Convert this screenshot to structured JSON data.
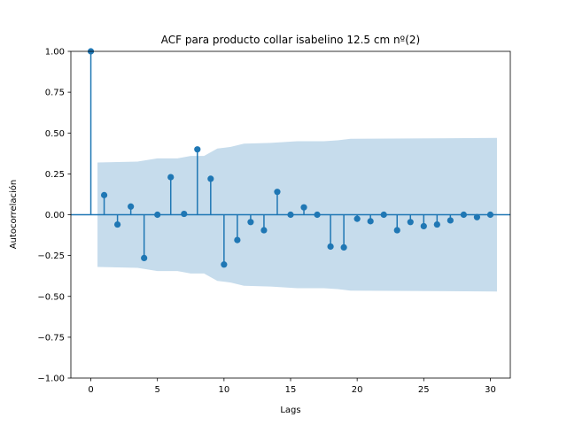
{
  "chart_data": {
    "type": "stem",
    "title": "ACF para producto collar isabelino 12.5 cm nº(2)",
    "xlabel": "Lags",
    "ylabel": "Autocorrelación",
    "xlim": [
      -1.5,
      31.5
    ],
    "ylim": [
      -1.0,
      1.0
    ],
    "x_ticks": [
      0,
      5,
      10,
      15,
      20,
      25,
      30
    ],
    "y_ticks": [
      -1.0,
      -0.75,
      -0.5,
      -0.25,
      0.0,
      0.25,
      0.5,
      0.75,
      1.0
    ],
    "x_tick_labels": [
      "0",
      "5",
      "10",
      "15",
      "20",
      "25",
      "30"
    ],
    "y_tick_labels": [
      "−1.00",
      "−0.75",
      "−0.50",
      "−0.25",
      "0.00",
      "0.25",
      "0.50",
      "0.75",
      "1.00"
    ],
    "lags": [
      0,
      1,
      2,
      3,
      4,
      5,
      6,
      7,
      8,
      9,
      10,
      11,
      12,
      13,
      14,
      15,
      16,
      17,
      18,
      19,
      20,
      21,
      22,
      23,
      24,
      25,
      26,
      27,
      28,
      29,
      30
    ],
    "values": [
      1.0,
      0.12,
      -0.06,
      0.05,
      -0.265,
      0.0,
      0.23,
      0.005,
      0.4,
      0.22,
      -0.305,
      -0.155,
      -0.045,
      -0.095,
      0.14,
      0.0,
      0.045,
      0.0,
      -0.195,
      -0.2,
      -0.025,
      -0.04,
      0.0,
      -0.095,
      -0.045,
      -0.07,
      -0.06,
      -0.035,
      0.0,
      -0.015,
      0.0
    ],
    "confidence_band": {
      "lags": [
        0.5,
        3.5,
        5,
        6.5,
        7.5,
        8.5,
        9.5,
        10.5,
        11.5,
        13.5,
        15.5,
        17.5,
        18.5,
        19.5,
        30.5
      ],
      "upper": [
        0.32,
        0.325,
        0.345,
        0.345,
        0.36,
        0.36,
        0.405,
        0.415,
        0.435,
        0.44,
        0.45,
        0.45,
        0.455,
        0.465,
        0.47
      ]
    },
    "colors": {
      "stem": "#1f77b4",
      "band": "#c6dcec",
      "axes": "#000000"
    }
  }
}
